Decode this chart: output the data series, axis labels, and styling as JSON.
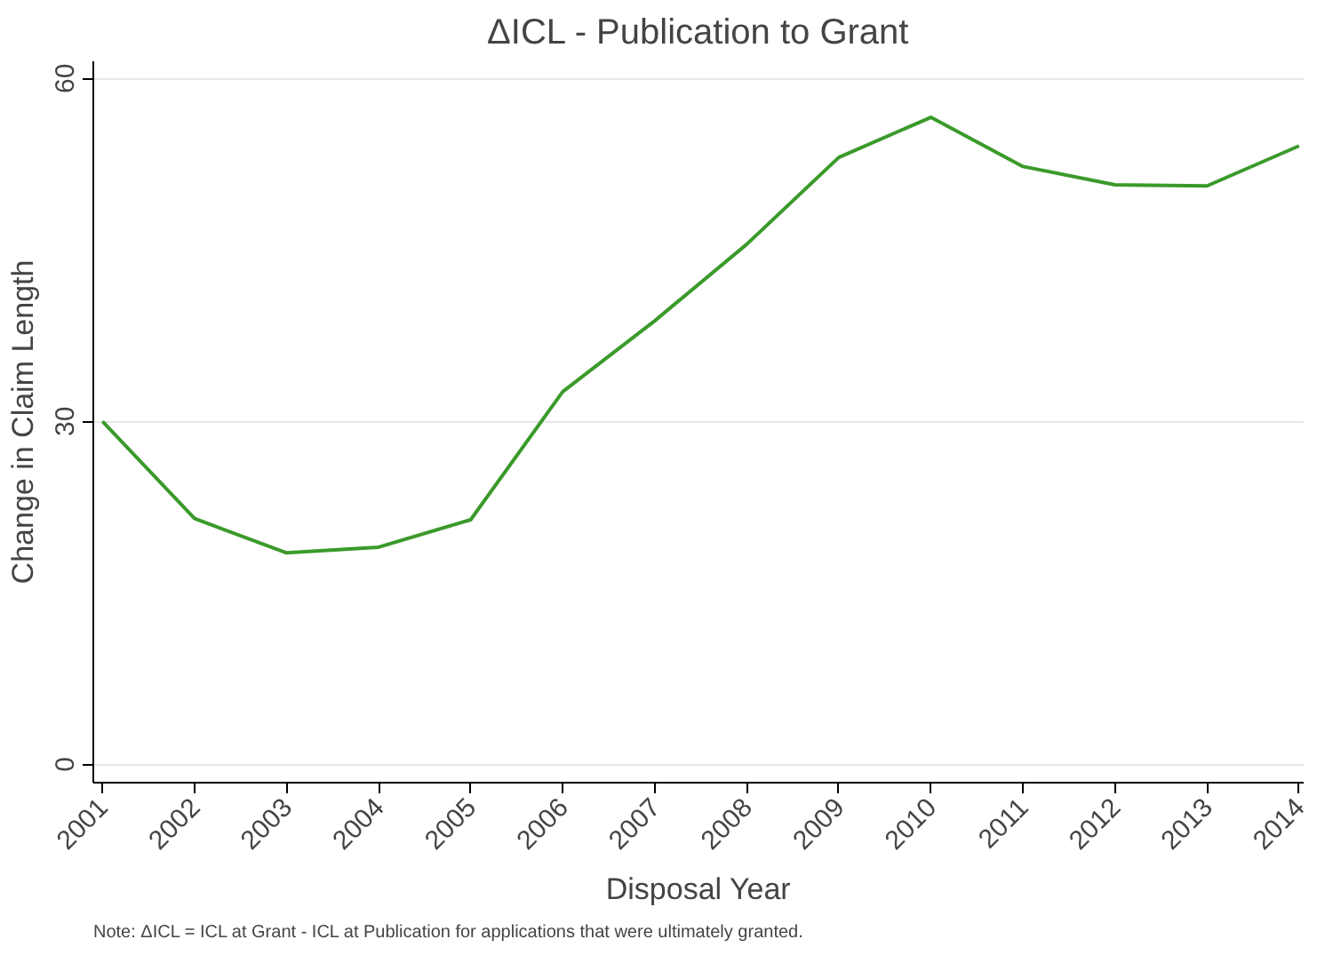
{
  "chart_data": {
    "type": "line",
    "title": "ΔICL - Publication to Grant",
    "xlabel": "Disposal Year",
    "ylabel": "Change in Claim Length",
    "x": [
      2001,
      2002,
      2003,
      2004,
      2005,
      2006,
      2007,
      2008,
      2009,
      2010,
      2011,
      2012,
      2013,
      2014
    ],
    "series": [
      {
        "color": "#3a9a2a",
        "values": [
          30.0,
          21.5,
          18.5,
          19.0,
          21.4,
          32.6,
          38.8,
          45.5,
          53.1,
          56.6,
          52.3,
          50.7,
          50.6,
          54.1
        ]
      }
    ],
    "xlim": [
      2000.9,
      2014.05
    ],
    "xticks": [
      2001,
      2002,
      2003,
      2004,
      2005,
      2006,
      2007,
      2008,
      2009,
      2010,
      2011,
      2012,
      2013,
      2014
    ],
    "ylim": [
      -1.6,
      61.5
    ],
    "yticks": [
      0,
      30,
      60
    ],
    "grid": "y",
    "annotations": [
      "Note: ΔICL = ICL at Grant - ICL at Publication for applications that were ultimately granted."
    ]
  }
}
